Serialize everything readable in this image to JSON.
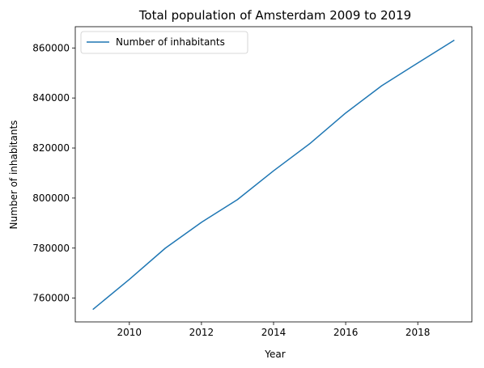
{
  "chart_data": {
    "type": "line",
    "title": "Total population of Amsterdam 2009 to 2019",
    "xlabel": "Year",
    "ylabel": "Number of inhabitants",
    "xlim": [
      2008.5,
      2019.5
    ],
    "ylim": [
      750500,
      868500
    ],
    "x_ticks": [
      2010,
      2012,
      2014,
      2016,
      2018
    ],
    "y_ticks": [
      760000,
      780000,
      800000,
      820000,
      840000,
      860000
    ],
    "x_tick_labels": [
      "2010",
      "2012",
      "2014",
      "2016",
      "2018"
    ],
    "y_tick_labels": [
      "760000",
      "780000",
      "800000",
      "820000",
      "840000",
      "860000"
    ],
    "legend": {
      "position": "top-left"
    },
    "grid": false,
    "series": [
      {
        "name": "Number of inhabitants",
        "color": "#1f77b4",
        "x": [
          2009,
          2010,
          2011,
          2012,
          2013,
          2014,
          2015,
          2016,
          2017,
          2018,
          2019
        ],
        "y": [
          755600,
          767500,
          780000,
          790300,
          799400,
          810900,
          821700,
          834000,
          844900,
          854000,
          863000
        ]
      }
    ]
  }
}
